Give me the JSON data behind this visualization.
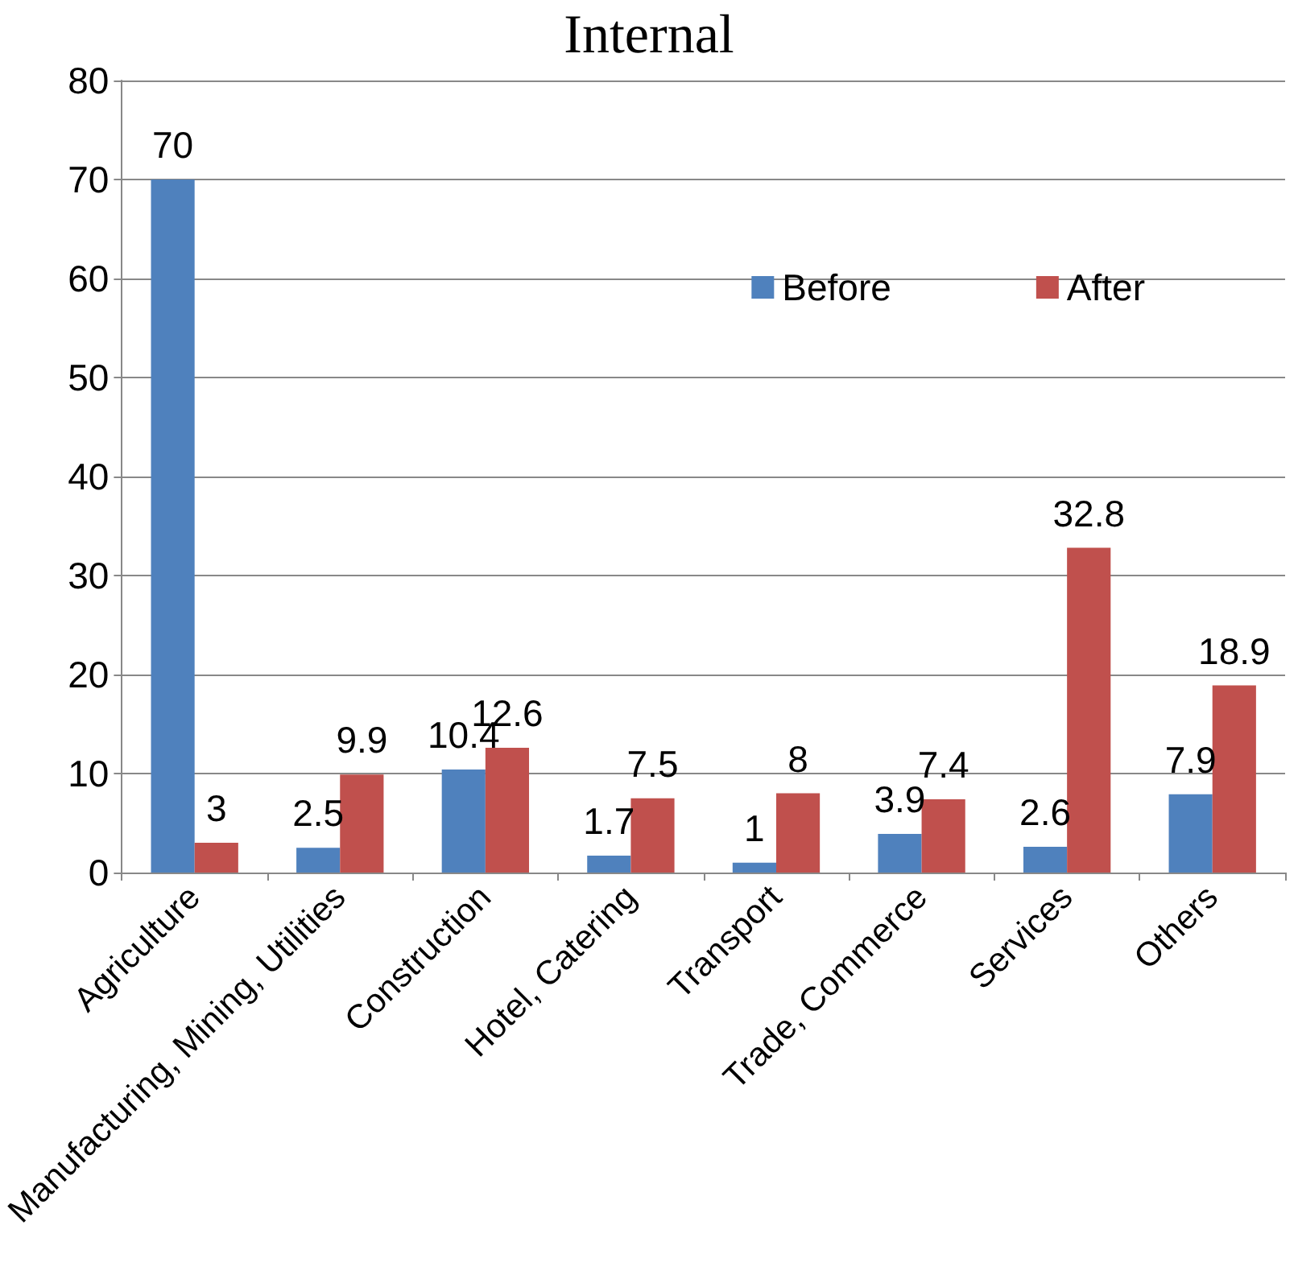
{
  "chart_data": {
    "type": "bar",
    "title": "Internal",
    "categories": [
      "Agriculture",
      "Manufacturing, Mining, Utilities",
      "Construction",
      "Hotel, Catering",
      "Transport",
      "Trade, Commerce",
      "Services",
      "Others"
    ],
    "series": [
      {
        "name": "Before",
        "color": "#4f81bd",
        "values": [
          70,
          2.5,
          10.4,
          1.7,
          1,
          3.9,
          2.6,
          7.9
        ]
      },
      {
        "name": "After",
        "color": "#c0504d",
        "values": [
          3,
          9.9,
          12.6,
          7.5,
          8,
          7.4,
          32.8,
          18.9
        ]
      }
    ],
    "ylim": [
      0,
      80
    ],
    "yticks": [
      0,
      10,
      20,
      30,
      40,
      50,
      60,
      70,
      80
    ],
    "grid": "y",
    "legend": "top right",
    "data_labels": true
  }
}
